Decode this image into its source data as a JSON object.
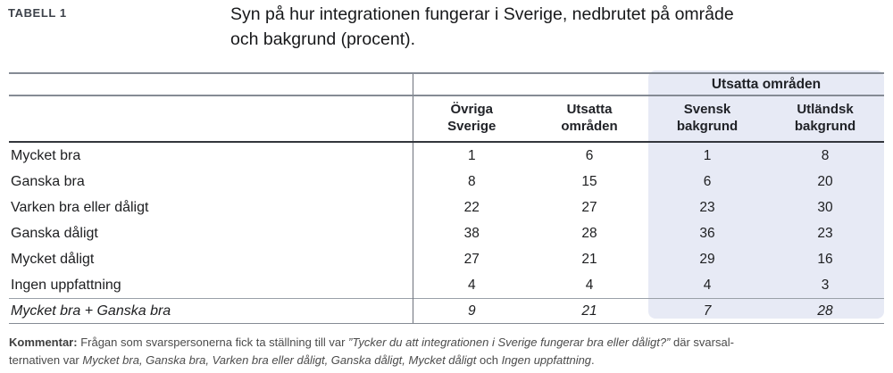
{
  "page": {
    "label": "TABELL 1",
    "title_lines": [
      "Syn på hur integrationen fungerar i Sverige, nedbrutet på område",
      "och bakgrund (procent)."
    ]
  },
  "table": {
    "group_header": "Utsatta områden",
    "columns": [
      "Övriga Sverige",
      "Utsatta områden",
      "Svensk bakgrund",
      "Utländsk bakgrund"
    ],
    "rows": [
      {
        "label": "Mycket bra",
        "values": [
          "1",
          "6",
          "1",
          "8"
        ]
      },
      {
        "label": "Ganska bra",
        "values": [
          "8",
          "15",
          "6",
          "20"
        ]
      },
      {
        "label": "Varken bra eller dåligt",
        "values": [
          "22",
          "27",
          "23",
          "30"
        ]
      },
      {
        "label": "Ganska dåligt",
        "values": [
          "38",
          "28",
          "36",
          "23"
        ]
      },
      {
        "label": "Mycket dåligt",
        "values": [
          "27",
          "21",
          "29",
          "16"
        ]
      },
      {
        "label": "Ingen uppfattning",
        "values": [
          "4",
          "4",
          "4",
          "3"
        ]
      }
    ],
    "summary_row": {
      "label": "Mycket bra + Ganska bra",
      "values": [
        "9",
        "21",
        "7",
        "28"
      ]
    }
  },
  "footer": {
    "line1": {
      "bold": "Kommentar:",
      "normal1": " Frågan som svarspersonerna fick ta ställning till var ",
      "italic": "”Tycker du att integrationen i Sverige fungerar bra eller dåligt?”",
      "normal2": " där svarsal-"
    },
    "line2": {
      "normal1": "ternativen var ",
      "italic1": "Mycket bra, Ganska bra, Varken bra eller dåligt, Ganska dåligt, Mycket dåligt",
      "normal2": " och ",
      "italic2": "Ingen uppfattning",
      "normal3": "."
    }
  },
  "colors": {
    "highlight": "#e7eaf5",
    "rule_gray": "#858b94",
    "rule_dark": "#33363c",
    "rule_thin": "#9aa0a8",
    "divider": "#6d727b",
    "text_dark": "#1d1e20",
    "text_label": "#3d424a",
    "text_footer": "#4b4b4b"
  }
}
